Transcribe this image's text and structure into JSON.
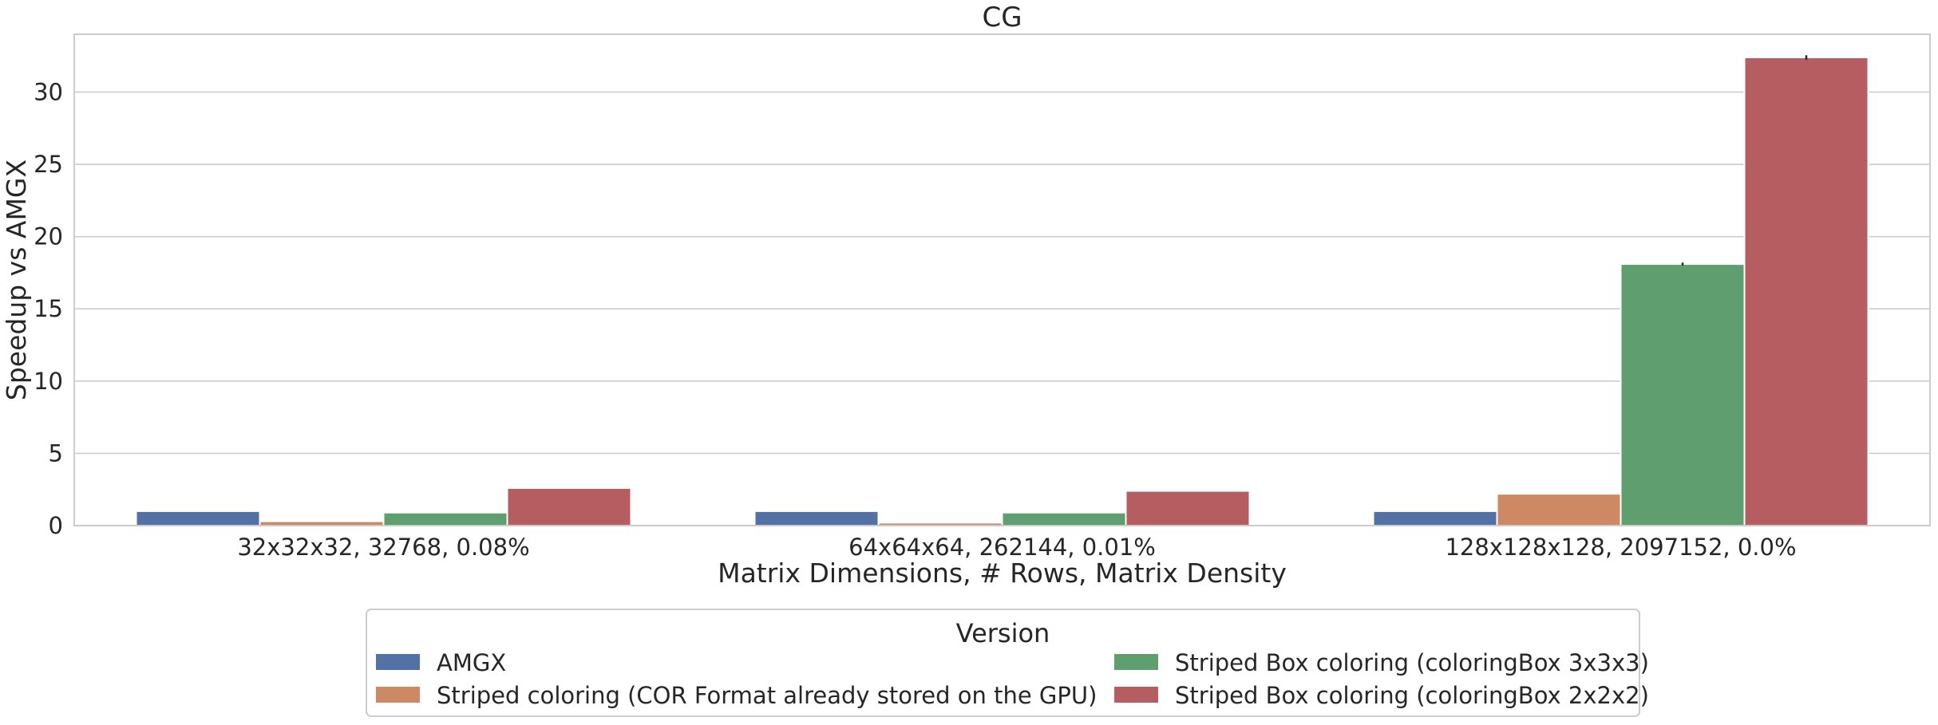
{
  "chart_data": {
    "type": "bar",
    "title": "CG",
    "xlabel": "Matrix Dimensions, # Rows, Matrix Density",
    "ylabel": "Speedup vs AMGX",
    "ylim": [
      0,
      34
    ],
    "yticks": [
      0,
      5,
      10,
      15,
      20,
      25,
      30
    ],
    "grid": true,
    "categories": [
      "32x32x32, 32768, 0.08%",
      "64x64x64, 262144, 0.01%",
      "128x128x128, 2097152, 0.0%"
    ],
    "legend": {
      "title": "Version",
      "placement": "bottom-center, below plot",
      "columns": 2
    },
    "series": [
      {
        "name": "AMGX",
        "color": "#5471a5",
        "values": [
          1.0,
          1.0,
          1.0
        ]
      },
      {
        "name": "Striped coloring (COR Format already stored on the GPU)",
        "color": "#cc8963",
        "values": [
          0.3,
          0.2,
          2.2
        ]
      },
      {
        "name": "Striped Box coloring (coloringBox 3x3x3)",
        "color": "#5f9e6e",
        "values": [
          0.9,
          0.9,
          18.1
        ],
        "error": [
          0,
          0,
          0.1
        ]
      },
      {
        "name": "Striped Box coloring (coloringBox 2x2x2)",
        "color": "#b55d60",
        "values": [
          2.6,
          2.4,
          32.4
        ],
        "error": [
          0,
          0,
          0.15
        ]
      }
    ]
  }
}
